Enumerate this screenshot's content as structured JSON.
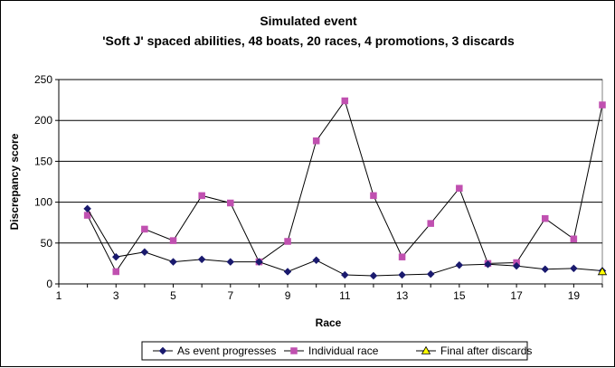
{
  "chart_data": {
    "type": "line",
    "title": "Simulated event",
    "subtitle": "'Soft J' spaced abilities, 48 boats, 20 races, 4 promotions, 3 discards",
    "xlabel": "Race",
    "ylabel": "Discrepancy score",
    "xlim": [
      1,
      20
    ],
    "ylim": [
      0,
      250
    ],
    "x_ticks": [
      "1",
      "3",
      "5",
      "7",
      "9",
      "11",
      "13",
      "15",
      "17",
      "19"
    ],
    "y_ticks": [
      "0",
      "50",
      "100",
      "150",
      "200",
      "250"
    ],
    "grid": "horizontal",
    "legend_position": "bottom",
    "series": [
      {
        "name": "As event progresses",
        "marker": "diamond",
        "color": "#1a1a6e",
        "x": [
          2,
          3,
          4,
          5,
          6,
          7,
          8,
          9,
          10,
          11,
          12,
          13,
          14,
          15,
          16,
          17,
          18,
          19,
          20
        ],
        "values": [
          92,
          33,
          39,
          27,
          30,
          27,
          27,
          15,
          29,
          11,
          10,
          11,
          12,
          23,
          24,
          22,
          18,
          19,
          16
        ]
      },
      {
        "name": "Individual race",
        "marker": "square",
        "color": "#c050b0",
        "x": [
          2,
          3,
          4,
          5,
          6,
          7,
          8,
          9,
          10,
          11,
          12,
          13,
          14,
          15,
          16,
          17,
          18,
          19,
          20
        ],
        "values": [
          84,
          15,
          67,
          53,
          108,
          99,
          27,
          52,
          175,
          224,
          108,
          33,
          74,
          117,
          25,
          26,
          80,
          55,
          219
        ]
      },
      {
        "name": "Final after discards",
        "marker": "triangle",
        "color": "#ffff00",
        "x": [
          20
        ],
        "values": [
          15
        ]
      }
    ]
  }
}
